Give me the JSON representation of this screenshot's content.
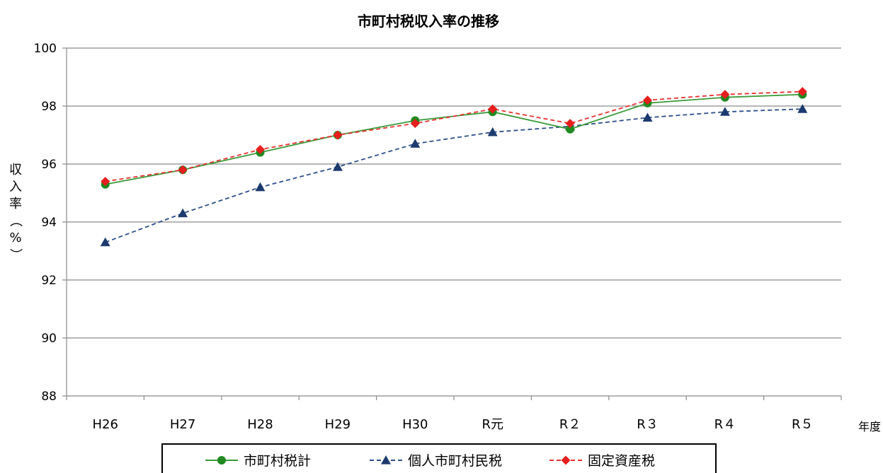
{
  "chart_data": {
    "type": "line",
    "title": "市町村税収入率の推移",
    "ylabel": "収入率（%）",
    "xlabel": "年度",
    "categories": [
      "H26",
      "H27",
      "H28",
      "H29",
      "H30",
      "R元",
      "R２",
      "R３",
      "R４",
      "R５"
    ],
    "ylim": [
      88,
      100
    ],
    "yticks": [
      88,
      90,
      92,
      94,
      96,
      98,
      100
    ],
    "grid": true,
    "legend": "bottom",
    "series": [
      {
        "name": "市町村税計",
        "values": [
          95.3,
          95.8,
          96.4,
          97.0,
          97.5,
          97.8,
          97.2,
          98.1,
          98.3,
          98.4
        ],
        "color": "#3a9b3a",
        "marker": "circle",
        "dash": "solid",
        "marker_color": "#1f8a1f"
      },
      {
        "name": "個人市町村民税",
        "values": [
          93.3,
          94.3,
          95.2,
          95.9,
          96.7,
          97.1,
          97.3,
          97.6,
          97.8,
          97.9
        ],
        "color": "#2b4f8a",
        "marker": "triangle",
        "dash": "dashed",
        "marker_color": "#1c3a6e"
      },
      {
        "name": "固定資産税",
        "values": [
          95.4,
          95.8,
          96.5,
          97.0,
          97.4,
          97.9,
          97.4,
          98.2,
          98.4,
          98.5
        ],
        "color": "#e83030",
        "marker": "diamond",
        "dash": "dashed",
        "marker_color": "#e61e1e"
      }
    ]
  }
}
